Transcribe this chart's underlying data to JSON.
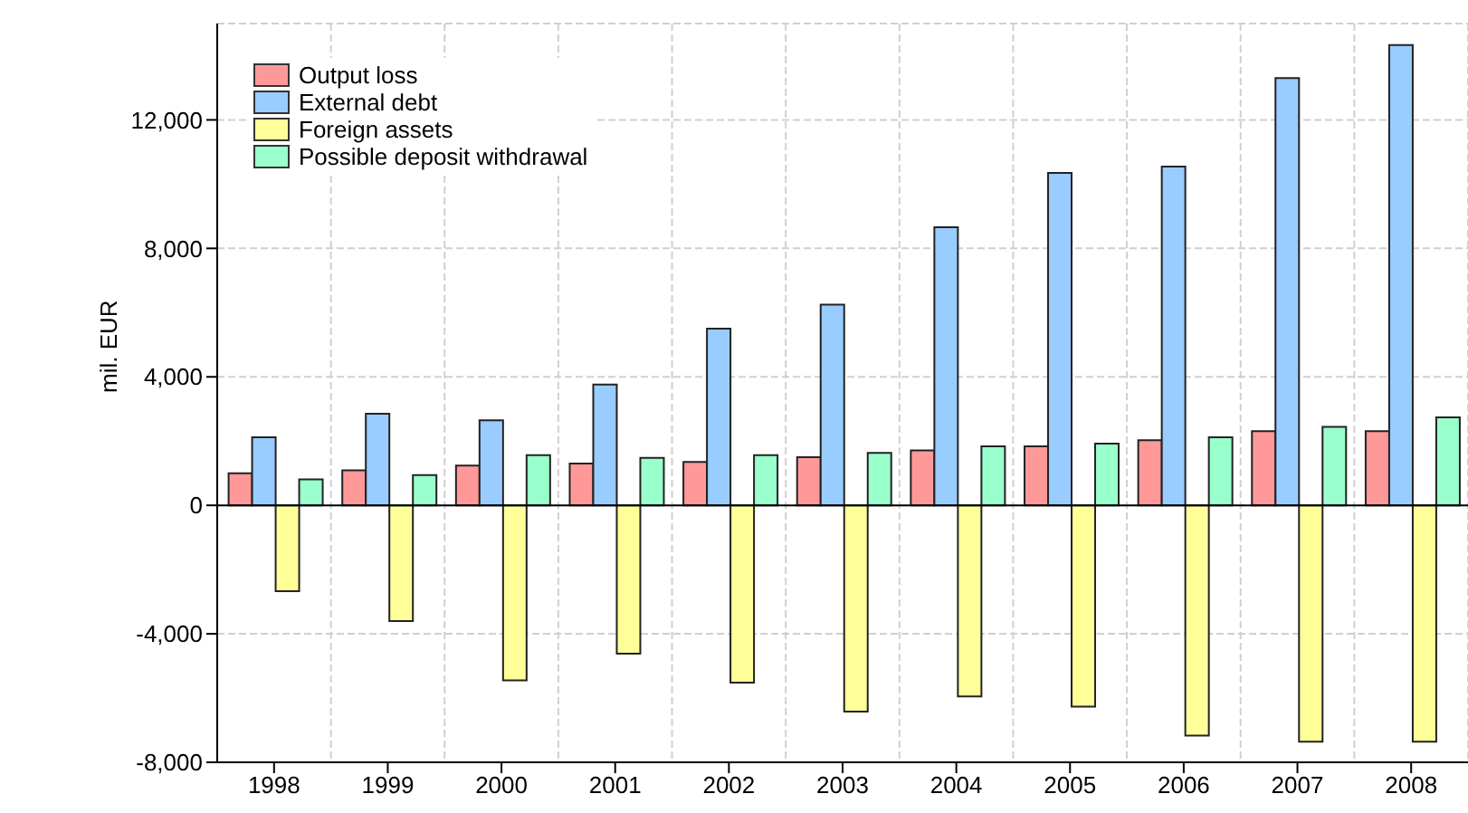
{
  "chart_data": {
    "type": "bar",
    "ylabel": "mil. EUR",
    "categories": [
      "1998",
      "1999",
      "2000",
      "2001",
      "2002",
      "2003",
      "2004",
      "2005",
      "2006",
      "2007",
      "2008"
    ],
    "series": [
      {
        "name": "Output loss",
        "color": "#ff9999",
        "values": [
          1000,
          1090,
          1240,
          1300,
          1350,
          1500,
          1710,
          1840,
          2030,
          2310,
          2310
        ]
      },
      {
        "name": "External debt",
        "color": "#99ccff",
        "values": [
          2120,
          2850,
          2650,
          3760,
          5500,
          6250,
          8660,
          10350,
          10550,
          13300,
          14330
        ]
      },
      {
        "name": "Foreign assets",
        "color": "#ffff99",
        "values": [
          -2670,
          -3600,
          -5450,
          -4620,
          -5520,
          -6420,
          -5950,
          -6270,
          -7170,
          -7360,
          -7360
        ]
      },
      {
        "name": "Possible deposit withdrawal",
        "color": "#99ffcc",
        "values": [
          810,
          940,
          1560,
          1480,
          1560,
          1630,
          1840,
          1920,
          2120,
          2440,
          2740
        ]
      }
    ],
    "ylim": [
      -8000,
      15000
    ],
    "yticks": [
      {
        "value": -8000,
        "label": "-8,000"
      },
      {
        "value": -4000,
        "label": "-4,000"
      },
      0,
      {
        "value": 4000,
        "label": "4,000"
      },
      {
        "value": 8000,
        "label": "8,000"
      },
      {
        "value": 12000,
        "label": "12,000"
      }
    ],
    "grid": true,
    "legend": "top left"
  }
}
